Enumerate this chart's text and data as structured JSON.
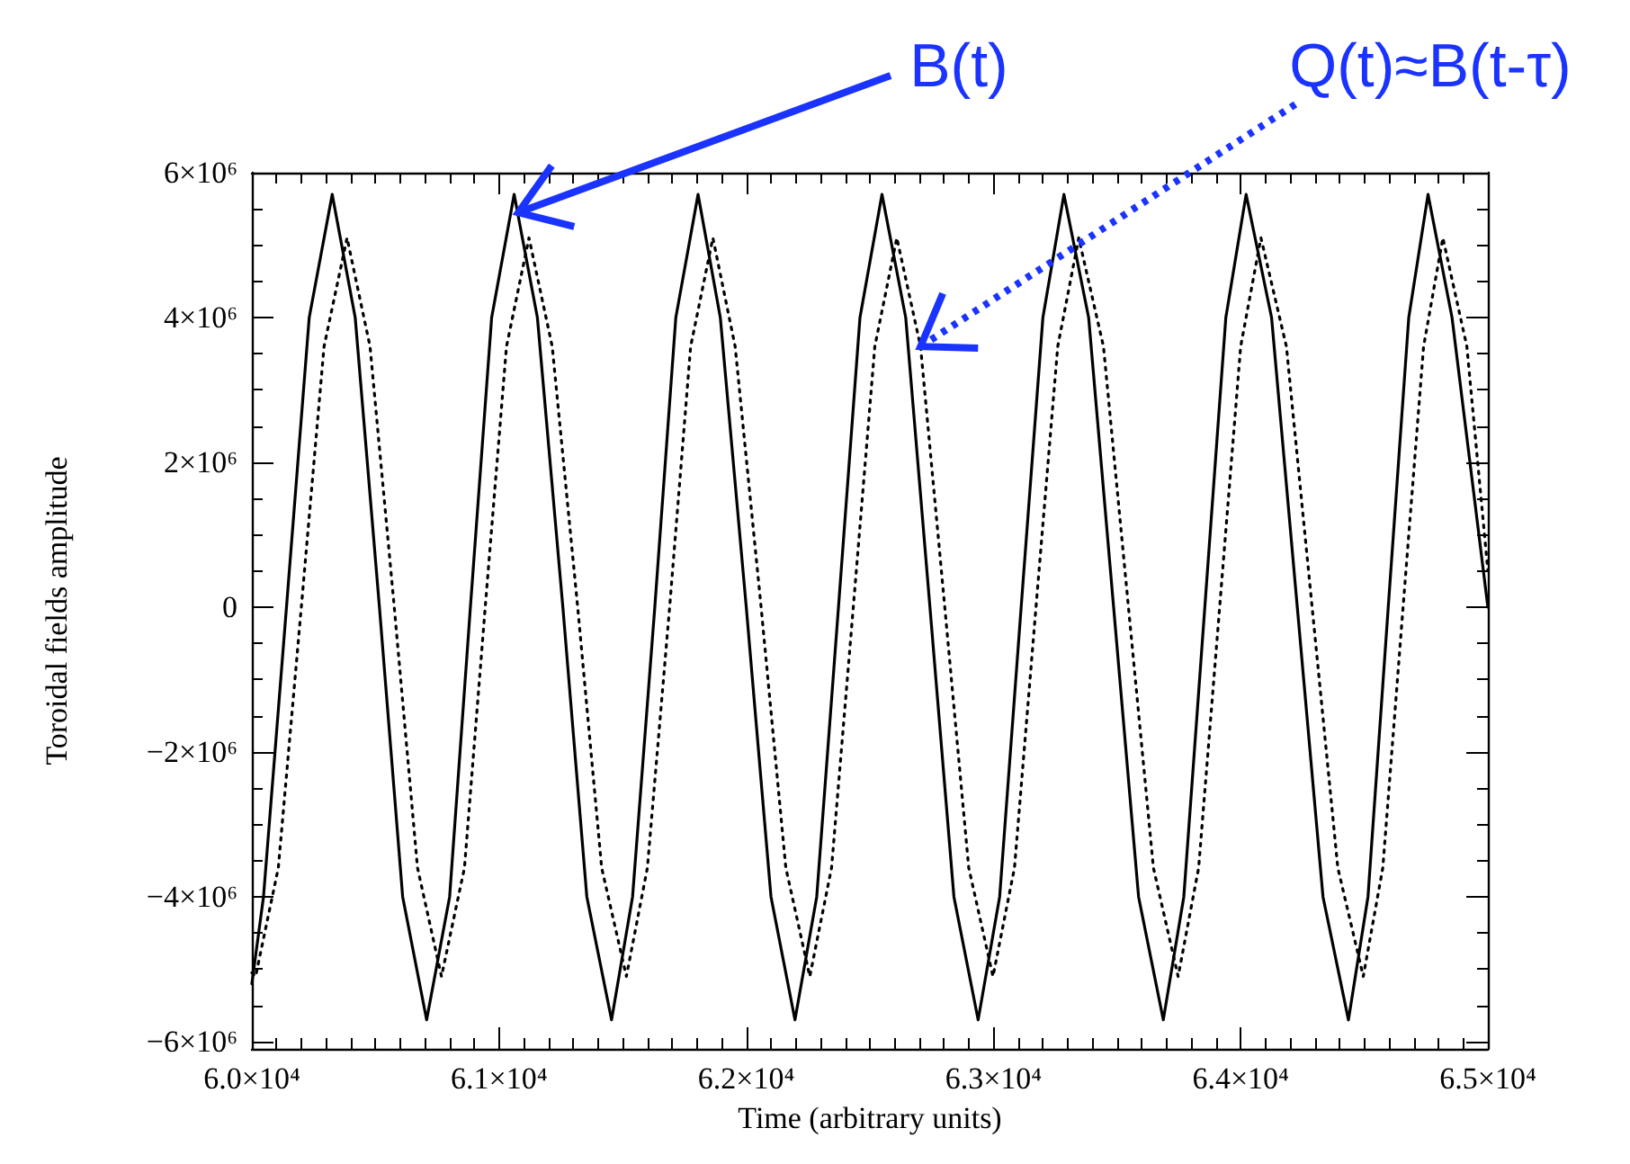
{
  "chart_data": {
    "type": "line",
    "xlabel": "Time (arbitrary units)",
    "ylabel": "Toroidal fields amplitude",
    "xlim": [
      60000,
      65000
    ],
    "xticks": [
      {
        "value": 60000,
        "label": "6.0×10⁴"
      },
      {
        "value": 61000,
        "label": "6.1×10⁴"
      },
      {
        "value": 62000,
        "label": "6.2×10⁴"
      },
      {
        "value": 63000,
        "label": "6.3×10⁴"
      },
      {
        "value": 64000,
        "label": "6.4×10⁴"
      },
      {
        "value": 65000,
        "label": "6.5×10⁴"
      }
    ],
    "ylim": [
      -6100000,
      6000000
    ],
    "yticks": [
      {
        "value": -6000000,
        "label": "−6×10⁶"
      },
      {
        "value": -4000000,
        "label": "−4×10⁶"
      },
      {
        "value": -2000000,
        "label": "−2×10⁶"
      },
      0,
      {
        "value": 2000000,
        "label": "2×10⁶"
      },
      {
        "value": 4000000,
        "label": "4×10⁶"
      },
      {
        "value": 6000000,
        "label": "6×10⁶"
      }
    ],
    "grid": false,
    "marker": "none",
    "series": [
      {
        "color": "#000000",
        "line_style": "solid",
        "x": [
          60000,
          60047,
          60140,
          60232,
          60325,
          60418,
          60516,
          60610,
          60707,
          60800,
          60884,
          60970,
          61061,
          61155,
          61258,
          61355,
          61455,
          61540,
          61630,
          61715,
          61805,
          61895,
          62000,
          62100,
          62197,
          62285,
          62373,
          62460,
          62549,
          62645,
          62743,
          62840,
          62938,
          63025,
          63112,
          63200,
          63285,
          63385,
          63486,
          63587,
          63687,
          63770,
          63855,
          63940,
          64022,
          64125,
          64229,
          64333,
          64436,
          64515,
          64597,
          64680,
          64758,
          64855,
          65000
        ],
        "values": [
          -5200000,
          -4000000,
          0,
          4000000,
          5700000,
          4000000,
          0,
          -4000000,
          -5700000,
          -4000000,
          0,
          4000000,
          5700000,
          4000000,
          0,
          -4000000,
          -5700000,
          -4000000,
          0,
          4000000,
          5700000,
          4000000,
          0,
          -4000000,
          -5700000,
          -4000000,
          0,
          4000000,
          5700000,
          4000000,
          0,
          -4000000,
          -5700000,
          -4000000,
          0,
          4000000,
          5700000,
          4000000,
          0,
          -4000000,
          -5700000,
          -4000000,
          0,
          4000000,
          5700000,
          4000000,
          0,
          -4000000,
          -5700000,
          -4000000,
          0,
          4000000,
          5700000,
          4000000,
          0
        ]
      },
      {
        "color": "#000000",
        "line_style": "dotted",
        "x": [
          60000,
          60015,
          60107,
          60200,
          60292,
          60385,
          60478,
          60576,
          60670,
          60767,
          60860,
          60944,
          61030,
          61121,
          61215,
          61318,
          61415,
          61515,
          61600,
          61690,
          61775,
          61865,
          61955,
          62060,
          62160,
          62257,
          62345,
          62433,
          62520,
          62609,
          62705,
          62803,
          62900,
          62998,
          63085,
          63172,
          63260,
          63345,
          63445,
          63546,
          63647,
          63747,
          63830,
          63915,
          64000,
          64082,
          64185,
          64289,
          64393,
          64496,
          64575,
          64657,
          64740,
          64818,
          64915,
          65000
        ],
        "values": [
          -5050000,
          -5100000,
          -3600000,
          0,
          3600000,
          5100000,
          3600000,
          0,
          -3600000,
          -5100000,
          -3600000,
          0,
          3600000,
          5100000,
          3600000,
          0,
          -3600000,
          -5100000,
          -3600000,
          0,
          3600000,
          5100000,
          3600000,
          0,
          -3600000,
          -5100000,
          -3600000,
          0,
          3600000,
          5100000,
          3600000,
          0,
          -3600000,
          -5100000,
          -3600000,
          0,
          3600000,
          5100000,
          3600000,
          0,
          -3600000,
          -5100000,
          -3600000,
          0,
          3600000,
          5100000,
          3600000,
          0,
          -3600000,
          -5100000,
          -3600000,
          0,
          3600000,
          5100000,
          3600000,
          500000
        ]
      }
    ],
    "annotations": [
      {
        "text": "B(t)",
        "x": 61078,
        "y": 5450000
      },
      {
        "text": "Q(t)≈B(t-τ)",
        "x": 62705,
        "y": 3600000
      }
    ]
  }
}
